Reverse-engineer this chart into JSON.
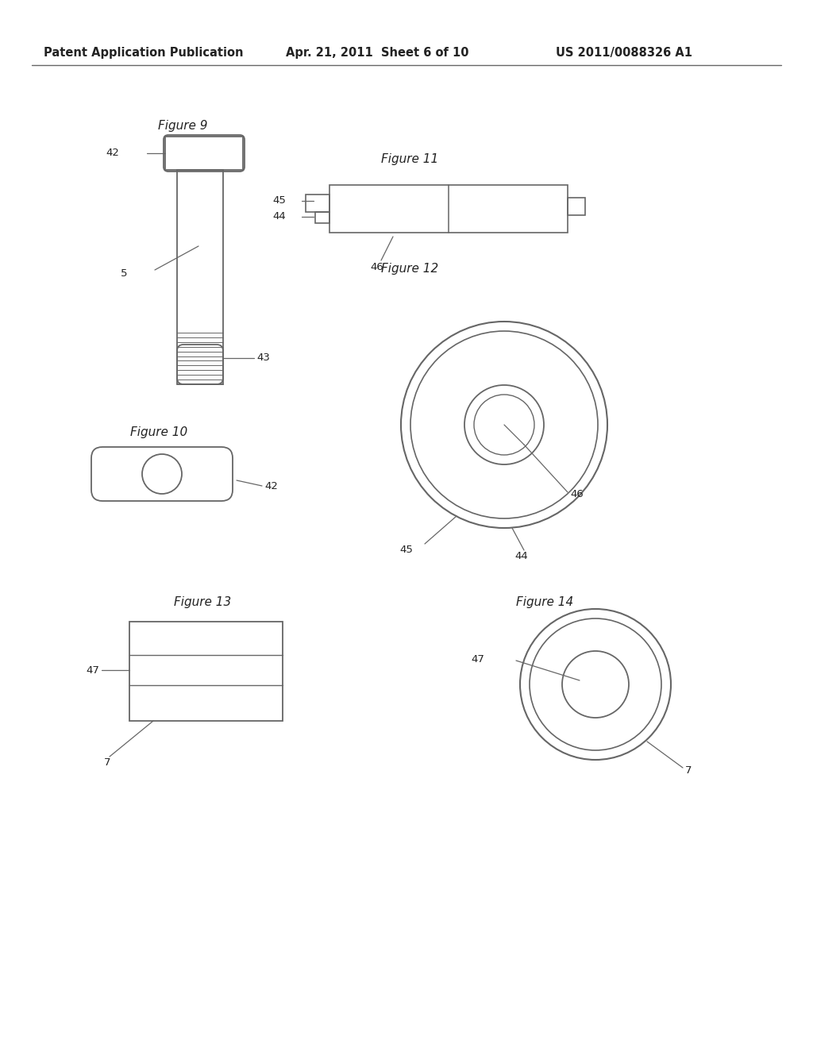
{
  "bg_color": "#ffffff",
  "header_left": "Patent Application Publication",
  "header_mid": "Apr. 21, 2011  Sheet 6 of 10",
  "header_right": "US 2011/0088326 A1",
  "line_color": "#666666",
  "text_color": "#222222"
}
